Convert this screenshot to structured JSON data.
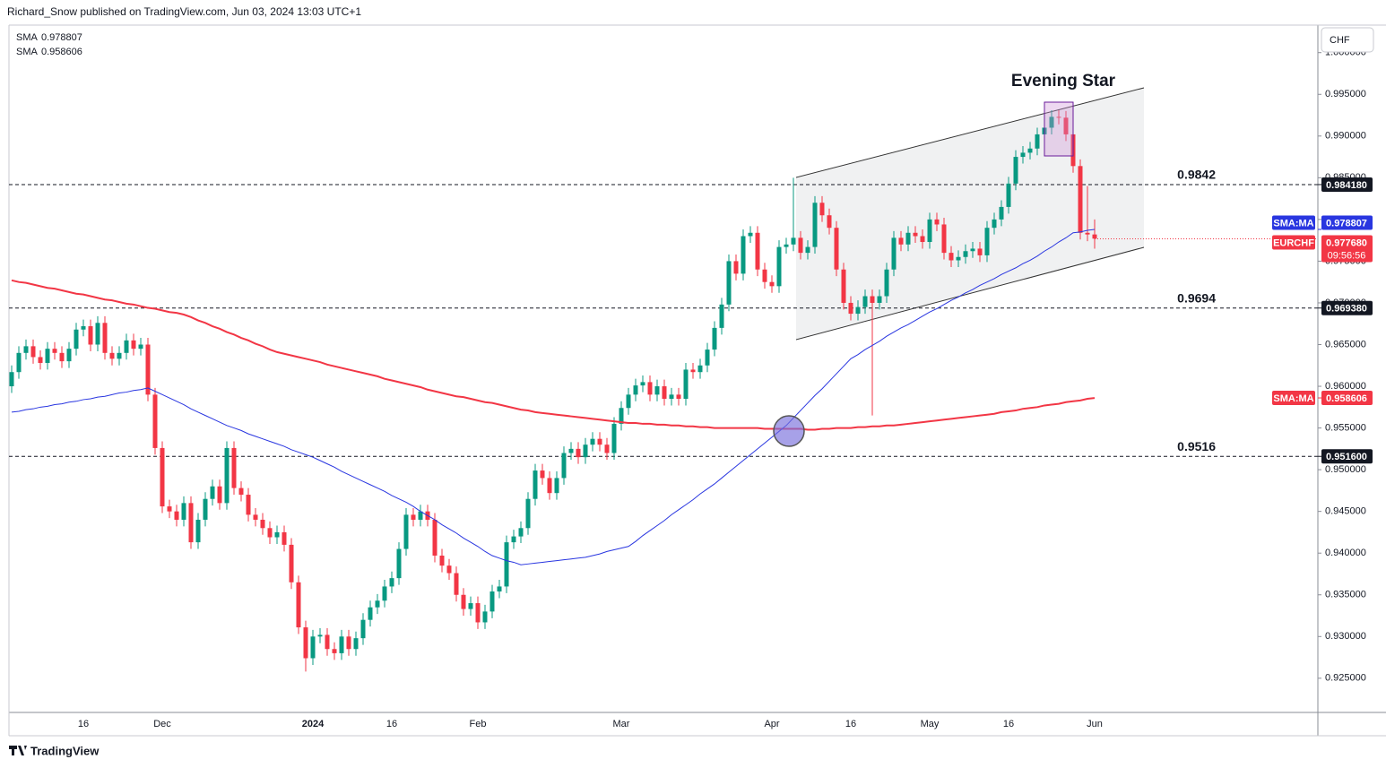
{
  "header": "Richard_Snow published on TradingView.com, Jun 03, 2024 13:03 UTC+1",
  "footer": "TradingView",
  "chart_data": {
    "type": "candlestick",
    "symbol": "EURCHF",
    "currency": "CHF",
    "up_color": "#089981",
    "down_color": "#f23645",
    "grid": false,
    "categories": [
      null,
      null,
      null,
      null,
      null,
      null,
      null,
      null,
      null,
      null,
      "16",
      null,
      null,
      null,
      null,
      null,
      null,
      null,
      null,
      null,
      null,
      "Dec",
      null,
      null,
      null,
      null,
      null,
      null,
      null,
      null,
      null,
      null,
      null,
      null,
      null,
      null,
      null,
      null,
      null,
      null,
      null,
      null,
      "2024",
      null,
      null,
      null,
      null,
      null,
      null,
      null,
      null,
      null,
      null,
      "16",
      null,
      null,
      null,
      null,
      null,
      null,
      null,
      null,
      null,
      null,
      null,
      "Feb",
      null,
      null,
      null,
      null,
      null,
      null,
      null,
      null,
      null,
      null,
      null,
      null,
      null,
      null,
      null,
      null,
      null,
      null,
      null,
      "Mar",
      null,
      null,
      null,
      null,
      null,
      null,
      null,
      null,
      null,
      null,
      null,
      null,
      null,
      null,
      null,
      null,
      null,
      null,
      null,
      null,
      "Apr",
      null,
      null,
      null,
      null,
      null,
      null,
      null,
      null,
      null,
      null,
      "16",
      null,
      null,
      null,
      null,
      null,
      null,
      null,
      null,
      null,
      null,
      "May",
      null,
      null,
      null,
      null,
      null,
      null,
      null,
      null,
      null,
      null,
      "16",
      null,
      null,
      null,
      null,
      null,
      null,
      null,
      null,
      null,
      null,
      null,
      "Jun"
    ],
    "open": [
      0.96,
      0.9617,
      0.964,
      0.9648,
      0.9635,
      0.9628,
      0.9645,
      0.964,
      0.963,
      0.9645,
      0.9668,
      0.9672,
      0.965,
      0.9676,
      0.964,
      0.9633,
      0.964,
      0.9655,
      0.9645,
      0.965,
      0.959,
      0.9526,
      0.9456,
      0.945,
      0.944,
      0.946,
      0.9413,
      0.944,
      0.9465,
      0.948,
      0.946,
      0.9526,
      0.9478,
      0.947,
      0.9446,
      0.944,
      0.943,
      0.9419,
      0.9425,
      0.941,
      0.9365,
      0.9311,
      0.9274,
      0.93,
      0.9302,
      0.9285,
      0.928,
      0.93,
      0.9285,
      0.9298,
      0.932,
      0.9335,
      0.9343,
      0.936,
      0.937,
      0.9405,
      0.9446,
      0.944,
      0.945,
      0.944,
      0.9397,
      0.9385,
      0.9376,
      0.935,
      0.9333,
      0.934,
      0.9317,
      0.933,
      0.9354,
      0.936,
      0.9413,
      0.942,
      0.943,
      0.9465,
      0.9499,
      0.949,
      0.9472,
      0.949,
      0.952,
      0.9525,
      0.9515,
      0.953,
      0.9537,
      0.953,
      0.952,
      0.9555,
      0.9574,
      0.959,
      0.9601,
      0.9605,
      0.959,
      0.96,
      0.9585,
      0.959,
      0.9585,
      0.962,
      0.9617,
      0.9625,
      0.9644,
      0.967,
      0.9698,
      0.975,
      0.9735,
      0.978,
      0.9784,
      0.974,
      0.9725,
      0.972,
      0.9767,
      0.977,
      0.9778,
      0.976,
      0.9767,
      0.982,
      0.9805,
      0.979,
      0.974,
      0.97,
      0.9687,
      0.9695,
      0.9708,
      0.97,
      0.9708,
      0.974,
      0.9778,
      0.977,
      0.9784,
      0.978,
      0.9773,
      0.98,
      0.9794,
      0.976,
      0.9751,
      0.9755,
      0.9762,
      0.9765,
      0.9757,
      0.979,
      0.98,
      0.9815,
      0.9843,
      0.9875,
      0.988,
      0.9885,
      0.9902,
      0.991,
      0.9923,
      0.9922,
      0.9902,
      0.9864,
      0.9784,
      0.9782
    ],
    "high": [
      0.9625,
      0.9648,
      0.9656,
      0.9656,
      0.9643,
      0.9653,
      0.9653,
      0.9648,
      0.9653,
      0.9676,
      0.968,
      0.968,
      0.9684,
      0.9684,
      0.9648,
      0.9648,
      0.9663,
      0.9663,
      0.9658,
      0.9658,
      0.9598,
      0.9534,
      0.9464,
      0.9458,
      0.9468,
      0.9468,
      0.9448,
      0.9473,
      0.9488,
      0.9488,
      0.9534,
      0.9534,
      0.9486,
      0.9478,
      0.9454,
      0.9448,
      0.9438,
      0.9433,
      0.9433,
      0.9418,
      0.9373,
      0.9319,
      0.9308,
      0.931,
      0.931,
      0.9293,
      0.9308,
      0.9308,
      0.9306,
      0.9328,
      0.9343,
      0.9351,
      0.9368,
      0.9378,
      0.9413,
      0.9454,
      0.9454,
      0.9458,
      0.9458,
      0.9448,
      0.9405,
      0.9393,
      0.9384,
      0.9358,
      0.9348,
      0.9348,
      0.9338,
      0.9362,
      0.9368,
      0.9421,
      0.9428,
      0.9438,
      0.9473,
      0.9507,
      0.9507,
      0.9498,
      0.9498,
      0.9528,
      0.9533,
      0.9533,
      0.9538,
      0.9545,
      0.9545,
      0.9538,
      0.9563,
      0.9582,
      0.9598,
      0.9609,
      0.9613,
      0.9613,
      0.9608,
      0.9608,
      0.9598,
      0.9598,
      0.9628,
      0.9628,
      0.9633,
      0.9652,
      0.9678,
      0.9706,
      0.9758,
      0.9758,
      0.9788,
      0.9792,
      0.9792,
      0.9748,
      0.9733,
      0.9775,
      0.9778,
      0.985,
      0.9786,
      0.9775,
      0.9828,
      0.9828,
      0.9813,
      0.9798,
      0.9748,
      0.9708,
      0.9703,
      0.9716,
      0.9716,
      0.9716,
      0.9748,
      0.9786,
      0.9786,
      0.9792,
      0.9792,
      0.9788,
      0.9808,
      0.9808,
      0.9802,
      0.9768,
      0.9763,
      0.977,
      0.9773,
      0.9773,
      0.9798,
      0.9808,
      0.9823,
      0.9851,
      0.9883,
      0.9888,
      0.9893,
      0.991,
      0.9918,
      0.9931,
      0.9931,
      0.993,
      0.991,
      0.9872,
      0.984,
      0.98
    ],
    "low": [
      0.9592,
      0.9609,
      0.9632,
      0.9627,
      0.962,
      0.962,
      0.9632,
      0.9622,
      0.9622,
      0.9637,
      0.966,
      0.9642,
      0.9642,
      0.9632,
      0.9625,
      0.9625,
      0.9632,
      0.9637,
      0.9637,
      0.9582,
      0.9518,
      0.9448,
      0.9442,
      0.9432,
      0.9432,
      0.9405,
      0.9405,
      0.9432,
      0.9457,
      0.9452,
      0.9452,
      0.947,
      0.9462,
      0.9438,
      0.9432,
      0.9422,
      0.9411,
      0.9411,
      0.9402,
      0.9357,
      0.9303,
      0.9258,
      0.9266,
      0.9292,
      0.9277,
      0.9272,
      0.9272,
      0.9277,
      0.9277,
      0.929,
      0.9312,
      0.9327,
      0.9335,
      0.9352,
      0.9362,
      0.9397,
      0.9432,
      0.9432,
      0.9432,
      0.9389,
      0.9377,
      0.9368,
      0.9342,
      0.9325,
      0.9325,
      0.9309,
      0.9309,
      0.9322,
      0.9346,
      0.9352,
      0.9405,
      0.9412,
      0.9422,
      0.9457,
      0.9482,
      0.9464,
      0.9464,
      0.9482,
      0.9512,
      0.9507,
      0.9507,
      0.9522,
      0.9522,
      0.9512,
      0.9512,
      0.9547,
      0.9566,
      0.9582,
      0.9593,
      0.9582,
      0.9582,
      0.9577,
      0.9577,
      0.9577,
      0.9577,
      0.9609,
      0.9609,
      0.9617,
      0.9636,
      0.9662,
      0.969,
      0.9727,
      0.9727,
      0.9772,
      0.9732,
      0.9717,
      0.9712,
      0.9712,
      0.9759,
      0.9762,
      0.9752,
      0.9752,
      0.9759,
      0.9797,
      0.9782,
      0.9732,
      0.9692,
      0.9679,
      0.9679,
      0.9687,
      0.9565,
      0.9692,
      0.97,
      0.9732,
      0.9762,
      0.9762,
      0.9772,
      0.9765,
      0.9765,
      0.9786,
      0.9752,
      0.9743,
      0.9743,
      0.9747,
      0.9754,
      0.9749,
      0.9749,
      0.9782,
      0.9792,
      0.9807,
      0.9835,
      0.9867,
      0.9872,
      0.9877,
      0.9894,
      0.9902,
      0.9914,
      0.9894,
      0.9856,
      0.9776,
      0.9774,
      0.9765
    ],
    "close": [
      0.9617,
      0.964,
      0.9648,
      0.9635,
      0.9628,
      0.9645,
      0.964,
      0.963,
      0.9645,
      0.9668,
      0.9672,
      0.965,
      0.9676,
      0.964,
      0.9633,
      0.964,
      0.9655,
      0.9645,
      0.965,
      0.959,
      0.9526,
      0.9456,
      0.945,
      0.944,
      0.946,
      0.9413,
      0.944,
      0.9465,
      0.948,
      0.946,
      0.9526,
      0.9478,
      0.947,
      0.9446,
      0.944,
      0.943,
      0.9419,
      0.9425,
      0.941,
      0.9365,
      0.9311,
      0.9274,
      0.93,
      0.9302,
      0.9285,
      0.928,
      0.93,
      0.9285,
      0.9298,
      0.932,
      0.9335,
      0.9343,
      0.936,
      0.937,
      0.9405,
      0.9446,
      0.944,
      0.945,
      0.944,
      0.9397,
      0.9385,
      0.9376,
      0.935,
      0.9333,
      0.934,
      0.9317,
      0.933,
      0.9354,
      0.936,
      0.9413,
      0.942,
      0.943,
      0.9465,
      0.9499,
      0.949,
      0.9472,
      0.949,
      0.952,
      0.9525,
      0.9515,
      0.953,
      0.9537,
      0.953,
      0.952,
      0.9555,
      0.9574,
      0.959,
      0.9601,
      0.9605,
      0.959,
      0.96,
      0.9585,
      0.959,
      0.9585,
      0.962,
      0.9617,
      0.9625,
      0.9644,
      0.967,
      0.9698,
      0.975,
      0.9735,
      0.978,
      0.9784,
      0.974,
      0.9725,
      0.972,
      0.9767,
      0.977,
      0.9778,
      0.976,
      0.9767,
      0.982,
      0.9805,
      0.979,
      0.974,
      0.97,
      0.9687,
      0.9695,
      0.9708,
      0.97,
      0.9708,
      0.974,
      0.9778,
      0.977,
      0.9784,
      0.978,
      0.9773,
      0.98,
      0.9794,
      0.976,
      0.9751,
      0.9755,
      0.9762,
      0.9765,
      0.9757,
      0.979,
      0.98,
      0.9815,
      0.9843,
      0.9875,
      0.988,
      0.9885,
      0.9902,
      0.991,
      0.9923,
      0.9922,
      0.9902,
      0.9864,
      0.9784,
      0.9782,
      0.9777
    ],
    "series": [
      {
        "name": "SMA",
        "badge": "SMA:MA",
        "color": "#f23645",
        "last": 0.958606,
        "values": [
          0.9727,
          0.9725,
          0.9724,
          0.9722,
          0.972,
          0.9718,
          0.9717,
          0.9715,
          0.9713,
          0.9711,
          0.971,
          0.9708,
          0.9706,
          0.9704,
          0.9703,
          0.9701,
          0.9699,
          0.9698,
          0.9696,
          0.9694,
          0.9693,
          0.9691,
          0.9689,
          0.9688,
          0.9686,
          0.9683,
          0.9679,
          0.9676,
          0.9672,
          0.9669,
          0.9665,
          0.9662,
          0.9658,
          0.9655,
          0.9651,
          0.9648,
          0.9644,
          0.9641,
          0.9639,
          0.9637,
          0.9635,
          0.9633,
          0.9631,
          0.9629,
          0.9626,
          0.9624,
          0.9622,
          0.962,
          0.9618,
          0.9616,
          0.9614,
          0.9612,
          0.9609,
          0.9607,
          0.9605,
          0.9603,
          0.9601,
          0.9599,
          0.9596,
          0.9594,
          0.9592,
          0.959,
          0.9588,
          0.9587,
          0.9585,
          0.9583,
          0.9581,
          0.958,
          0.9578,
          0.9576,
          0.9574,
          0.9572,
          0.9571,
          0.9569,
          0.9568,
          0.9567,
          0.9566,
          0.9565,
          0.9564,
          0.9563,
          0.9562,
          0.9561,
          0.956,
          0.9559,
          0.9558,
          0.9557,
          0.9556,
          0.9556,
          0.9555,
          0.9555,
          0.9554,
          0.9554,
          0.9553,
          0.9553,
          0.9552,
          0.9552,
          0.9551,
          0.9551,
          0.955,
          0.955,
          0.955,
          0.955,
          0.955,
          0.955,
          0.955,
          0.9549,
          0.9549,
          0.9549,
          0.9549,
          0.9549,
          0.9549,
          0.9548,
          0.9548,
          0.9549,
          0.9549,
          0.955,
          0.955,
          0.955,
          0.9551,
          0.9551,
          0.9552,
          0.9552,
          0.9553,
          0.9553,
          0.9554,
          0.9555,
          0.9556,
          0.9557,
          0.9558,
          0.9559,
          0.956,
          0.9561,
          0.9562,
          0.9563,
          0.9564,
          0.9565,
          0.9566,
          0.9567,
          0.9569,
          0.957,
          0.9571,
          0.9573,
          0.9574,
          0.9575,
          0.9577,
          0.9578,
          0.9579,
          0.9581,
          0.9582,
          0.9583,
          0.9585,
          0.9586
        ]
      },
      {
        "name": "SMA",
        "badge": "SMA:MA",
        "color": "#2936e0",
        "last": 0.978807,
        "values": [
          0.9569,
          0.957,
          0.9572,
          0.9573,
          0.9575,
          0.9576,
          0.9578,
          0.9579,
          0.9581,
          0.9582,
          0.9584,
          0.9585,
          0.9587,
          0.9588,
          0.959,
          0.9592,
          0.9593,
          0.9595,
          0.9596,
          0.9598,
          0.9594,
          0.959,
          0.9586,
          0.9582,
          0.9578,
          0.9573,
          0.9569,
          0.9565,
          0.9561,
          0.9557,
          0.9553,
          0.955,
          0.9547,
          0.9543,
          0.954,
          0.9537,
          0.9534,
          0.9531,
          0.9528,
          0.9524,
          0.9521,
          0.9518,
          0.9515,
          0.9511,
          0.9507,
          0.9503,
          0.9498,
          0.9494,
          0.949,
          0.9486,
          0.9482,
          0.9478,
          0.9474,
          0.9469,
          0.9465,
          0.9461,
          0.9456,
          0.945,
          0.9445,
          0.944,
          0.9434,
          0.9429,
          0.9424,
          0.9418,
          0.9413,
          0.9408,
          0.9402,
          0.9397,
          0.9394,
          0.9391,
          0.9389,
          0.9386,
          0.9387,
          0.9388,
          0.9389,
          0.939,
          0.9391,
          0.9392,
          0.9393,
          0.9394,
          0.9395,
          0.9397,
          0.9399,
          0.9402,
          0.9404,
          0.9406,
          0.9408,
          0.9414,
          0.9421,
          0.9427,
          0.9433,
          0.9439,
          0.9446,
          0.9452,
          0.9458,
          0.9464,
          0.9471,
          0.9477,
          0.9483,
          0.949,
          0.9497,
          0.9504,
          0.9511,
          0.9518,
          0.9525,
          0.9532,
          0.9539,
          0.9546,
          0.9553,
          0.9562,
          0.9571,
          0.958,
          0.9589,
          0.9597,
          0.9606,
          0.9615,
          0.9624,
          0.9633,
          0.9638,
          0.9644,
          0.9649,
          0.9654,
          0.966,
          0.9665,
          0.967,
          0.9674,
          0.9679,
          0.9684,
          0.9689,
          0.9693,
          0.9698,
          0.9703,
          0.9707,
          0.9712,
          0.9716,
          0.9721,
          0.9725,
          0.9729,
          0.9734,
          0.9738,
          0.9742,
          0.9747,
          0.9751,
          0.9756,
          0.9762,
          0.9767,
          0.9773,
          0.9778,
          0.9784,
          0.9785,
          0.9787,
          0.9788
        ]
      }
    ],
    "last_price": {
      "value": 0.97768,
      "label": "0.977680"
    },
    "countdown": "09:56:56",
    "levels": [
      {
        "value": 0.98418,
        "label": "0.9842",
        "price_label": "0.984180"
      },
      {
        "value": 0.96938,
        "label": "0.9694",
        "price_label": "0.969380"
      },
      {
        "value": 0.9516,
        "label": "0.9516",
        "price_label": "0.951600"
      }
    ],
    "annotations": [
      {
        "text": "Evening Star",
        "color": "#ab47bc"
      }
    ],
    "ylim": [
      0.9209,
      1.0033
    ],
    "yticks": [
      {
        "value": 0.925,
        "label": "0.925000"
      },
      {
        "value": 0.93,
        "label": "0.930000"
      },
      {
        "value": 0.935,
        "label": "0.935000"
      },
      {
        "value": 0.94,
        "label": "0.940000"
      },
      {
        "value": 0.945,
        "label": "0.945000"
      },
      {
        "value": 0.95,
        "label": "0.950000"
      },
      {
        "value": 0.955,
        "label": "0.955000"
      },
      {
        "value": 0.96,
        "label": "0.960000"
      },
      {
        "value": 0.965,
        "label": "0.965000"
      },
      {
        "value": 0.97,
        "label": "0.970000"
      },
      {
        "value": 0.975,
        "label": "0.975000"
      },
      {
        "value": 0.98,
        "label": "0.980000"
      },
      {
        "value": 0.985,
        "label": "0.985000"
      },
      {
        "value": 0.99,
        "label": "0.990000"
      },
      {
        "value": 0.995,
        "label": "0.995000"
      },
      {
        "value": 1.0,
        "label": "1.000000"
      }
    ]
  }
}
